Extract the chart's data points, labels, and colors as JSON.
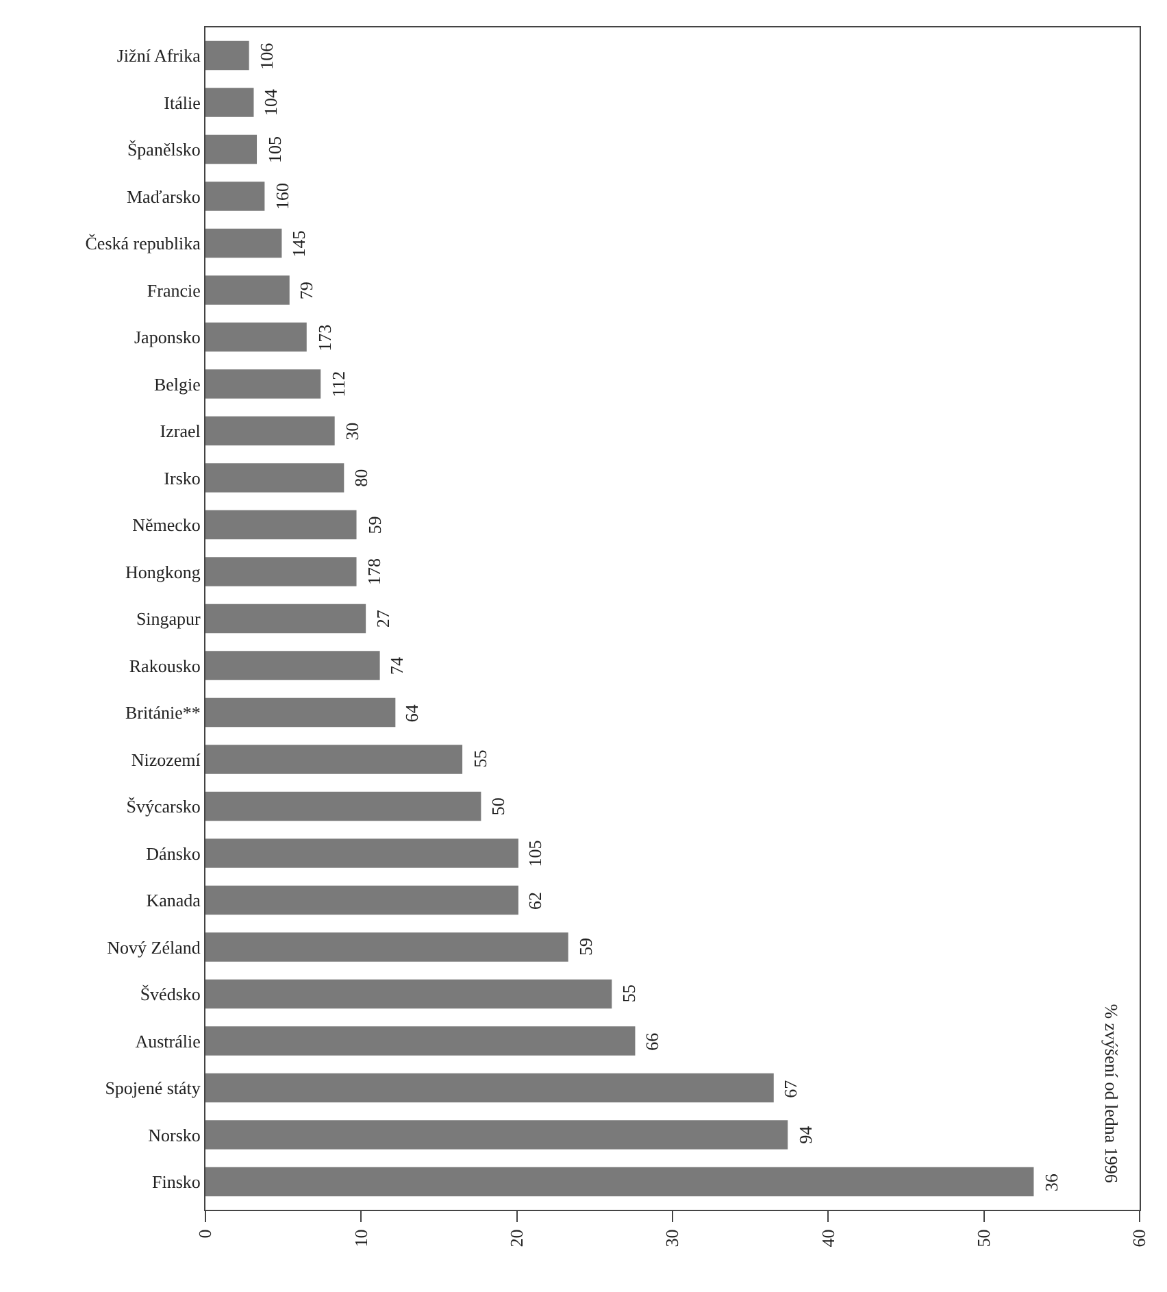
{
  "chart_data": {
    "type": "bar",
    "orientation": "horizontal",
    "categories": [
      "Jižní Afrika",
      "Itálie",
      "Španělsko",
      "Maďarsko",
      "Česká republika",
      "Francie",
      "Japonsko",
      "Belgie",
      "Izrael",
      "Irsko",
      "Německo",
      "Hongkong",
      "Singapur",
      "Rakousko",
      "Británie**",
      "Nizozemí",
      "Švýcarsko",
      "Dánsko",
      "Kanada",
      "Nový Zéland",
      "Švédsko",
      "Austrálie",
      "Spojené státy",
      "Norsko",
      "Finsko"
    ],
    "values": [
      2.8,
      3.1,
      3.3,
      3.8,
      4.9,
      5.4,
      6.5,
      7.4,
      8.3,
      8.9,
      9.7,
      9.7,
      10.3,
      11.2,
      12.2,
      16.5,
      17.7,
      20.1,
      20.1,
      23.3,
      26.1,
      27.6,
      36.5,
      37.4,
      53.2
    ],
    "color": "#7a7a7a",
    "xlim": [
      0,
      60
    ],
    "xticks": [
      0,
      10,
      20,
      30,
      40,
      50,
      60
    ],
    "grid": false,
    "annotations": [
      "% zvýšení od ledna 1996",
      {
        "text": "106",
        "x": 2.8,
        "y": "Jižní Afrika"
      },
      {
        "text": "104",
        "x": 3.1,
        "y": "Itálie"
      },
      {
        "text": "105",
        "x": 3.3,
        "y": "Španělsko"
      },
      {
        "text": "160",
        "x": 3.8,
        "y": "Maďarsko"
      },
      {
        "text": "145",
        "x": 4.9,
        "y": "Česká republika"
      },
      {
        "text": "79",
        "x": 5.4,
        "y": "Francie"
      },
      {
        "text": "173",
        "x": 6.5,
        "y": "Japonsko"
      },
      {
        "text": "112",
        "x": 7.4,
        "y": "Belgie"
      },
      {
        "text": "30",
        "x": 8.3,
        "y": "Izrael"
      },
      {
        "text": "80",
        "x": 8.9,
        "y": "Irsko"
      },
      {
        "text": "59",
        "x": 9.7,
        "y": "Německo"
      },
      {
        "text": "178",
        "x": 9.7,
        "y": "Hongkong"
      },
      {
        "text": "27",
        "x": 10.3,
        "y": "Singapur"
      },
      {
        "text": "74",
        "x": 11.2,
        "y": "Rakousko"
      },
      {
        "text": "64",
        "x": 12.2,
        "y": "Británie**"
      },
      {
        "text": "55",
        "x": 16.5,
        "y": "Nizozemí"
      },
      {
        "text": "50",
        "x": 17.7,
        "y": "Švýcarsko"
      },
      {
        "text": "105",
        "x": 20.1,
        "y": "Dánsko"
      },
      {
        "text": "62",
        "x": 20.1,
        "y": "Kanada"
      },
      {
        "text": "59",
        "x": 23.3,
        "y": "Nový Zéland"
      },
      {
        "text": "55",
        "x": 26.1,
        "y": "Švédsko"
      },
      {
        "text": "66",
        "x": 27.6,
        "y": "Austrálie"
      },
      {
        "text": "67",
        "x": 36.5,
        "y": "Spojené státy"
      },
      {
        "text": "94",
        "x": 37.4,
        "y": "Norsko"
      },
      {
        "text": "36",
        "x": 53.2,
        "y": "Finsko"
      }
    ]
  }
}
